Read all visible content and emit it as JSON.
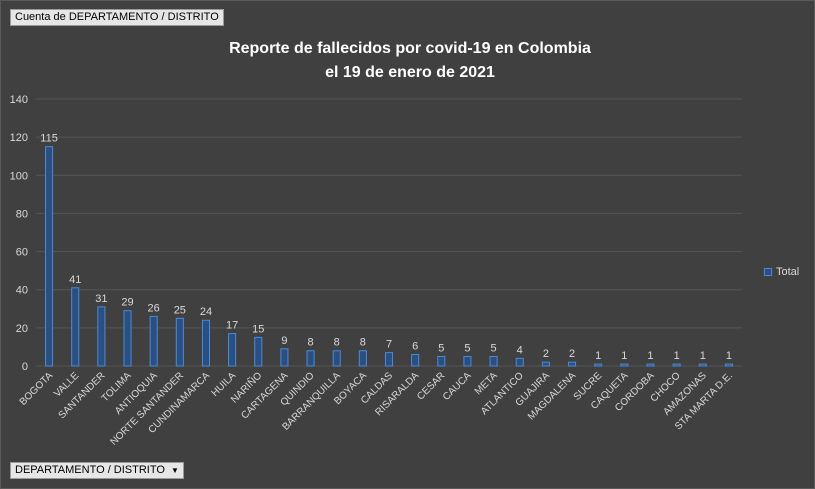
{
  "pivot": {
    "value_field": "Cuenta de DEPARTAMENTO / DISTRITO",
    "axis_field": "DEPARTAMENTO / DISTRITO",
    "axis_dropdown_icon": "dropdown-arrow-icon"
  },
  "colors": {
    "background": "#404040",
    "bar_fill": "#2a4f80",
    "bar_stroke": "#4a8ad8",
    "grid": "#555555"
  },
  "chart_data": {
    "type": "bar",
    "title_lines": [
      "Reporte de fallecidos por covid-19 en Colombia",
      "el 19 de enero de 2021"
    ],
    "categories": [
      "BOGOTA",
      "VALLE",
      "SANTANDER",
      "TOLIMA",
      "ANTIOQUIA",
      "NORTE SANTANDER",
      "CUNDINAMARCA",
      "HUILA",
      "NARIÑO",
      "CARTAGENA",
      "QUINDIO",
      "BARRANQUILLA",
      "BOYACA",
      "CALDAS",
      "RISARALDA",
      "CESAR",
      "CAUCA",
      "META",
      "ATLANTICO",
      "GUAJIRA",
      "MAGDALENA",
      "SUCRE",
      "CAQUETA",
      "CORDOBA",
      "CHOCO",
      "AMAZONAS",
      "STA MARTA D.E."
    ],
    "series": [
      {
        "name": "Total",
        "values": [
          115,
          41,
          31,
          29,
          26,
          25,
          24,
          17,
          15,
          9,
          8,
          8,
          8,
          7,
          6,
          5,
          5,
          5,
          4,
          2,
          2,
          1,
          1,
          1,
          1,
          1,
          1
        ]
      }
    ],
    "ylim": [
      0,
      140
    ],
    "yticks": [
      0,
      20,
      40,
      60,
      80,
      100,
      120,
      140
    ],
    "grid": true,
    "data_labels": true,
    "legend_position": "right"
  }
}
